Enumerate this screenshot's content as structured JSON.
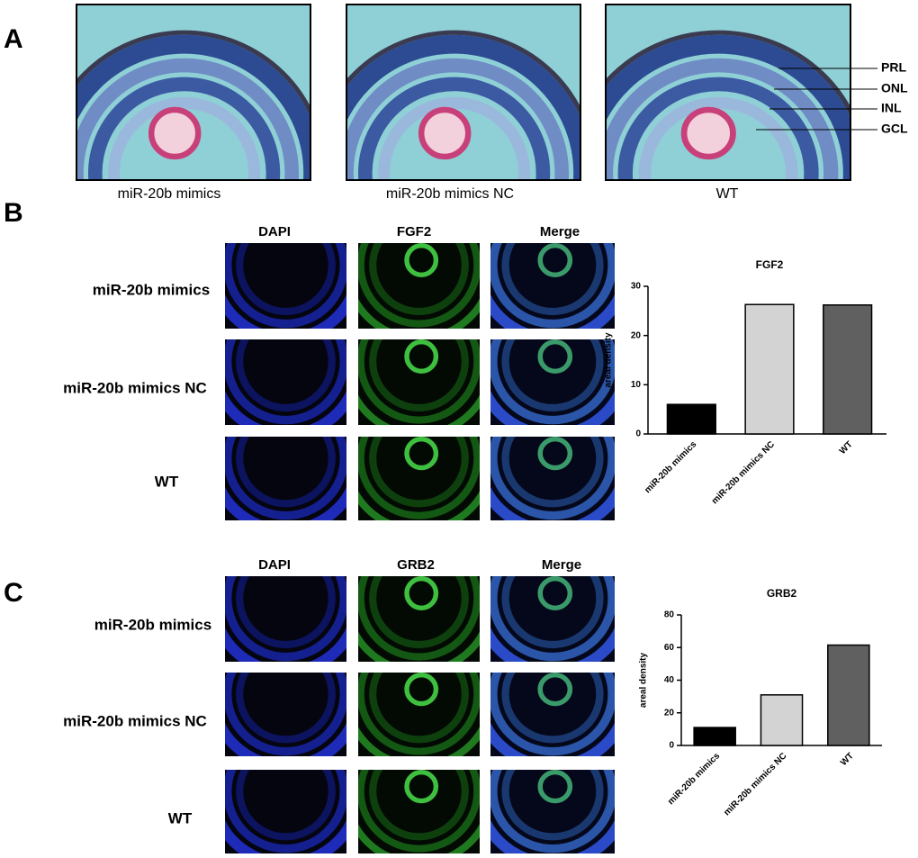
{
  "panel_labels": [
    "A",
    "B",
    "C"
  ],
  "panel_a": {
    "captions": [
      "miR-20b mimics",
      "miR-20b mimics NC",
      "WT"
    ],
    "layers": [
      "PRL",
      "ONL",
      "INL",
      "GCL"
    ]
  },
  "panel_b": {
    "columns": [
      "DAPI",
      "FGF2",
      "Merge"
    ],
    "rows": [
      "miR-20b mimics",
      "miR-20b mimics NC",
      "WT"
    ]
  },
  "panel_c": {
    "columns": [
      "DAPI",
      "GRB2",
      "Merge"
    ],
    "rows": [
      "miR-20b mimics",
      "miR-20b mimics NC",
      "WT"
    ]
  },
  "chart_data": [
    {
      "type": "bar",
      "title": "FGF2",
      "y_label": "areal density",
      "categories": [
        "miR-20b mimics",
        "miR-20b mimics NC",
        "WT"
      ],
      "values": [
        6,
        26.3,
        26.2
      ],
      "colors": [
        "#000000",
        "#d3d3d3",
        "#606060"
      ],
      "ylim": [
        0,
        30
      ],
      "yticks": [
        0,
        10,
        20,
        30
      ]
    },
    {
      "type": "bar",
      "title": "GRB2",
      "y_label": "areal density",
      "categories": [
        "miR-20b mimics",
        "miR-20b mimics NC",
        "WT"
      ],
      "values": [
        11,
        31,
        61.5
      ],
      "colors": [
        "#000000",
        "#d3d3d3",
        "#606060"
      ],
      "ylim": [
        0,
        80
      ],
      "yticks": [
        0,
        20,
        40,
        60,
        80
      ]
    }
  ]
}
